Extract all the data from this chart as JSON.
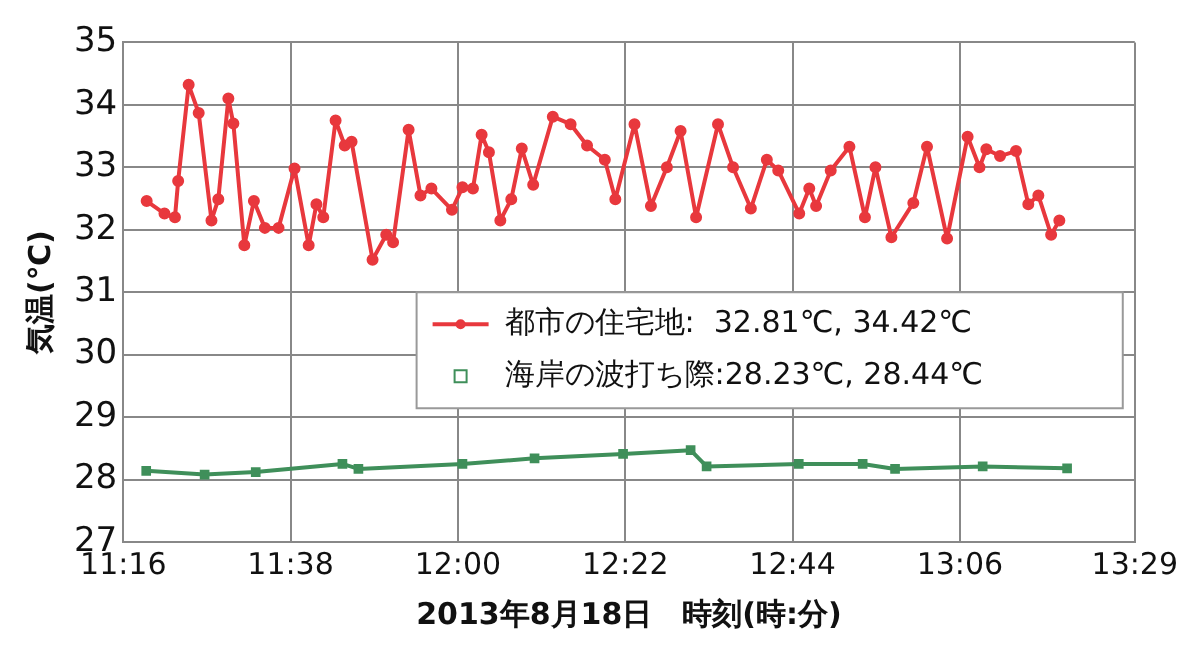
{
  "chart_data": {
    "type": "line",
    "xlabel": "2013年8月18日　時刻(時:分)",
    "ylabel": "気温(℃)",
    "xlim": [
      11.2667,
      13.4833
    ],
    "xticks": [
      {
        "value": 11.2667,
        "label": "11:16"
      },
      {
        "value": 11.6333,
        "label": "11:38"
      },
      {
        "value": 12.0,
        "label": "12:00"
      },
      {
        "value": 12.3667,
        "label": "12:22"
      },
      {
        "value": 12.7333,
        "label": "12:44"
      },
      {
        "value": 13.1,
        "label": "13:06"
      },
      {
        "value": 13.4833,
        "label": "13:29"
      }
    ],
    "ylim": [
      27,
      35
    ],
    "yticks": [
      27,
      28,
      29,
      30,
      31,
      32,
      33,
      34,
      35
    ],
    "grid": true,
    "legend": "right",
    "line_style": "solid",
    "series": [
      {
        "name": "都市の住宅地:  32.81℃, 34.42℃",
        "color": "#e8383d",
        "marker": "circle",
        "x": [
          11.318,
          11.357,
          11.38,
          11.387,
          11.41,
          11.432,
          11.46,
          11.475,
          11.497,
          11.508,
          11.532,
          11.553,
          11.577,
          11.607,
          11.642,
          11.673,
          11.69,
          11.705,
          11.732,
          11.752,
          11.767,
          11.813,
          11.843,
          11.858,
          11.892,
          11.918,
          11.942,
          11.987,
          12.01,
          12.033,
          12.052,
          12.068,
          12.093,
          12.117,
          12.14,
          12.165,
          12.208,
          12.247,
          12.283,
          12.322,
          12.345,
          12.387,
          12.423,
          12.458,
          12.488,
          12.522,
          12.57,
          12.603,
          12.642,
          12.677,
          12.702,
          12.748,
          12.77,
          12.785,
          12.817,
          12.858,
          12.892,
          12.915,
          12.95,
          12.998,
          13.028,
          13.072,
          13.117,
          13.143,
          13.158,
          13.188,
          13.223,
          13.25,
          13.272,
          13.3,
          13.318
        ],
        "values": [
          32.46,
          32.26,
          32.2,
          32.78,
          34.32,
          33.87,
          32.15,
          32.49,
          34.1,
          33.7,
          31.75,
          32.46,
          32.03,
          32.03,
          32.98,
          31.75,
          32.41,
          32.2,
          33.75,
          33.35,
          33.41,
          31.52,
          31.92,
          31.8,
          33.6,
          32.55,
          32.66,
          32.32,
          32.68,
          32.66,
          33.52,
          33.24,
          32.15,
          32.49,
          33.3,
          32.72,
          33.81,
          33.69,
          33.35,
          33.12,
          32.49,
          33.69,
          32.38,
          33.0,
          33.58,
          32.2,
          33.69,
          33.0,
          32.34,
          33.12,
          32.95,
          32.26,
          32.66,
          32.38,
          32.95,
          33.33,
          32.2,
          33.0,
          31.88,
          32.43,
          33.33,
          31.86,
          33.49,
          33.0,
          33.29,
          33.18,
          33.26,
          32.41,
          32.55,
          31.92,
          32.15
        ]
      },
      {
        "name": "海岸の波打ち際:28.23℃, 28.44℃",
        "color": "#3f8f5a",
        "marker": "square",
        "x": [
          11.317,
          11.445,
          11.557,
          11.747,
          11.782,
          12.01,
          12.168,
          12.362,
          12.51,
          12.545,
          12.747,
          12.887,
          12.958,
          13.15,
          13.335
        ],
        "values": [
          28.14,
          28.08,
          28.12,
          28.25,
          28.17,
          28.25,
          28.34,
          28.41,
          28.47,
          28.21,
          28.25,
          28.25,
          28.17,
          28.21,
          28.18
        ]
      }
    ]
  }
}
